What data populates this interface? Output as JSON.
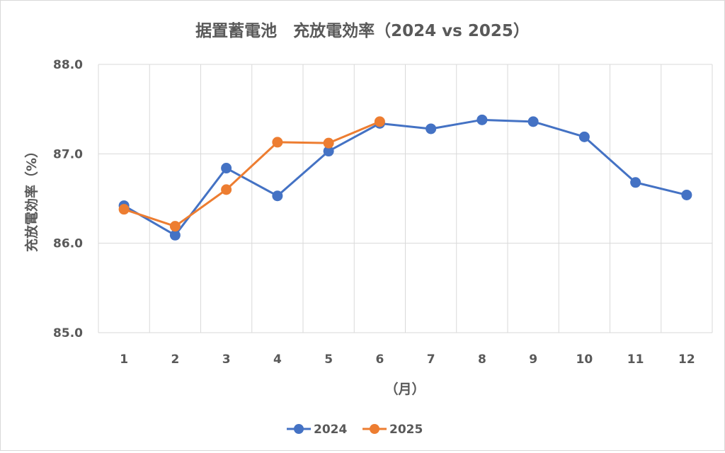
{
  "chart_data": {
    "type": "line",
    "title": "据置蓄電池　充放電効率（2024 vs 2025）",
    "xlabel": "（月）",
    "ylabel": "充放電効率（%）",
    "x": [
      1,
      2,
      3,
      4,
      5,
      6,
      7,
      8,
      9,
      10,
      11,
      12
    ],
    "x_tick_labels": [
      "1",
      "2",
      "3",
      "4",
      "5",
      "6",
      "7",
      "8",
      "9",
      "10",
      "11",
      "12"
    ],
    "ylim": [
      85.0,
      88.0
    ],
    "y_ticks": [
      85.0,
      86.0,
      87.0,
      88.0
    ],
    "y_tick_labels": [
      "85.0",
      "86.0",
      "87.0",
      "88.0"
    ],
    "grid": true,
    "legend_position": "bottom",
    "series": [
      {
        "name": "2024",
        "color": "#4472C4",
        "values": [
          86.42,
          86.09,
          86.84,
          86.53,
          87.03,
          87.34,
          87.28,
          87.38,
          87.36,
          87.19,
          86.68,
          86.54
        ]
      },
      {
        "name": "2025",
        "color": "#ED7D31",
        "values": [
          86.38,
          86.19,
          86.6,
          87.13,
          87.12,
          87.36,
          null,
          null,
          null,
          null,
          null,
          null
        ]
      }
    ]
  }
}
